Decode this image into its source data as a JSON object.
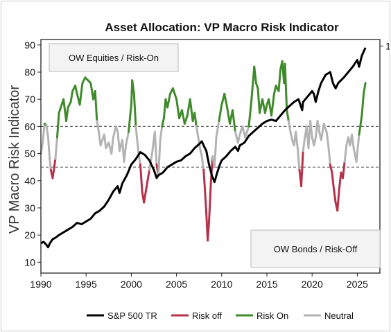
{
  "chart_data": {
    "type": "line",
    "title": "Asset Allocation: VP Macro Risk Indicator",
    "ylabel": "VP Macro Risk Indicator",
    "xlim": [
      1990,
      2027.5
    ],
    "ylim": [
      6,
      92
    ],
    "x_ticks": [
      1990,
      1995,
      2000,
      2005,
      2010,
      2015,
      2020,
      2025
    ],
    "y_ticks": [
      10,
      20,
      30,
      40,
      50,
      60,
      70,
      80,
      90
    ],
    "right_axis_ticks": [
      {
        "label": "1",
        "y": 89.6
      }
    ],
    "thresholds": [
      60,
      45
    ],
    "grid": false,
    "legend_position": "bottom",
    "annotations": [
      {
        "text": "OW Equities / Risk-On",
        "position": "top-left"
      },
      {
        "text": "OW Bonds / Risk-Off",
        "position": "bottom-right"
      }
    ],
    "colors": {
      "sp500": "#000000",
      "risk_off": "#b5324b",
      "risk_on": "#3f8a2a",
      "neutral": "#b3b3b3"
    },
    "series": [
      {
        "name": "S&P 500 TR",
        "role": "sp500",
        "x": [
          1990.0,
          1990.3,
          1990.6,
          1990.8,
          1991.0,
          1991.3,
          1991.6,
          1992.0,
          1992.5,
          1993.0,
          1993.5,
          1994.0,
          1994.5,
          1995.0,
          1995.5,
          1996.0,
          1996.5,
          1997.0,
          1997.5,
          1998.0,
          1998.5,
          1998.7,
          1999.0,
          1999.5,
          2000.0,
          2000.5,
          2001.0,
          2001.5,
          2002.0,
          2002.5,
          2002.8,
          2003.0,
          2003.5,
          2004.0,
          2004.5,
          2005.0,
          2005.5,
          2006.0,
          2006.5,
          2007.0,
          2007.5,
          2007.8,
          2008.0,
          2008.3,
          2008.6,
          2008.9,
          2009.2,
          2009.5,
          2009.8,
          2010.0,
          2010.5,
          2011.0,
          2011.5,
          2011.8,
          2012.0,
          2012.5,
          2013.0,
          2013.5,
          2014.0,
          2014.5,
          2015.0,
          2015.5,
          2016.0,
          2016.5,
          2017.0,
          2017.5,
          2018.0,
          2018.5,
          2018.9,
          2019.0,
          2019.5,
          2020.0,
          2020.2,
          2020.4,
          2020.7,
          2021.0,
          2021.5,
          2022.0,
          2022.3,
          2022.6,
          2022.9,
          2023.2,
          2023.5,
          2024.0,
          2024.5,
          2025.0,
          2025.2,
          2025.5,
          2025.9
        ],
        "y": [
          17,
          17.5,
          16.5,
          15.5,
          17,
          18.5,
          19,
          20,
          21,
          22,
          23,
          24.5,
          24,
          25,
          26,
          28,
          29,
          30.5,
          33,
          36,
          38,
          35.5,
          39,
          42,
          46,
          48,
          50.5,
          49.5,
          47.5,
          44,
          41,
          42,
          43,
          45,
          46,
          47,
          47.5,
          49,
          50,
          52,
          53.5,
          54.5,
          53,
          51,
          46,
          42,
          39.5,
          43,
          46,
          47.5,
          49,
          51,
          52.5,
          51,
          53,
          54,
          56.5,
          58,
          59.5,
          61,
          62,
          62.5,
          62,
          64,
          66,
          67.5,
          69,
          70,
          66,
          69,
          71,
          73,
          72,
          69,
          73,
          76,
          79,
          80,
          76,
          74,
          76,
          77,
          78,
          80,
          82,
          84.5,
          82,
          86,
          89
        ]
      },
      {
        "name": "Risk Indicator",
        "role": "indicator",
        "legend_names": [
          "Risk off",
          "Risk On",
          "Neutral"
        ],
        "x": [
          1990.0,
          1990.2,
          1990.4,
          1990.6,
          1990.8,
          1991.0,
          1991.1,
          1991.3,
          1991.6,
          1991.8,
          1992.0,
          1992.3,
          1992.5,
          1992.8,
          1993.0,
          1993.3,
          1993.5,
          1993.8,
          1994.0,
          1994.3,
          1994.6,
          1994.9,
          1995.2,
          1995.5,
          1995.8,
          1996.0,
          1996.2,
          1996.4,
          1996.6,
          1996.8,
          1997.0,
          1997.2,
          1997.5,
          1997.8,
          1998.0,
          1998.3,
          1998.5,
          1998.7,
          1999.0,
          1999.2,
          1999.4,
          1999.7,
          2000.0,
          2000.1,
          2000.3,
          2000.5,
          2000.8,
          2001.0,
          2001.2,
          2001.4,
          2001.6,
          2001.8,
          2002.0,
          2002.3,
          2002.6,
          2002.8,
          2003.0,
          2003.2,
          2003.4,
          2003.6,
          2003.8,
          2004.0,
          2004.3,
          2004.6,
          2005.0,
          2005.3,
          2005.6,
          2005.9,
          2006.2,
          2006.5,
          2006.8,
          2007.0,
          2007.2,
          2007.4,
          2007.6,
          2007.8,
          2008.0,
          2008.1,
          2008.3,
          2008.45,
          2008.6,
          2008.8,
          2009.0,
          2009.2,
          2009.4,
          2009.7,
          2010.0,
          2010.3,
          2010.6,
          2010.9,
          2011.2,
          2011.5,
          2011.8,
          2012.0,
          2012.3,
          2012.6,
          2013.0,
          2013.3,
          2013.6,
          2013.8,
          2014.0,
          2014.2,
          2014.5,
          2014.8,
          2015.0,
          2015.2,
          2015.5,
          2015.8,
          2016.0,
          2016.3,
          2016.5,
          2016.7,
          2016.9,
          2017.0,
          2017.2,
          2017.4,
          2017.6,
          2017.8,
          2018.0,
          2018.2,
          2018.4,
          2018.6,
          2018.8,
          2019.0,
          2019.2,
          2019.4,
          2019.6,
          2019.8,
          2020.0,
          2020.2,
          2020.4,
          2020.6,
          2020.8,
          2021.0,
          2021.3,
          2021.6,
          2021.8,
          2022.0,
          2022.2,
          2022.4,
          2022.6,
          2022.8,
          2023.0,
          2023.2,
          2023.4,
          2023.6,
          2023.8,
          2024.0,
          2024.2,
          2024.4,
          2024.6,
          2024.9,
          2025.2,
          2025.5,
          2025.7,
          2025.9
        ],
        "y": [
          50,
          54,
          61,
          60.5,
          56,
          47,
          44,
          41,
          48,
          56,
          65,
          68,
          70,
          62,
          67,
          69,
          73,
          75,
          72,
          68,
          76,
          78,
          77,
          76,
          70,
          73,
          62,
          58,
          53,
          55,
          57,
          52,
          54,
          50,
          56,
          60,
          58,
          51,
          55,
          47,
          53,
          58,
          68,
          77,
          72,
          60,
          50,
          46,
          36,
          32,
          36,
          40,
          44,
          50,
          58,
          46,
          42,
          55,
          60,
          63,
          70,
          67,
          72,
          74,
          70,
          63,
          66,
          61,
          64,
          70,
          62,
          65,
          60,
          56,
          52,
          49,
          44,
          39,
          28,
          18,
          25,
          39,
          49,
          45,
          56,
          62,
          68,
          72,
          67,
          61,
          66,
          58,
          54,
          57,
          60,
          56,
          60,
          70,
          82,
          76,
          74,
          65,
          70,
          65,
          68,
          70,
          64,
          72,
          75,
          73,
          81,
          84,
          76,
          83,
          66,
          62,
          58,
          55,
          53,
          58,
          52,
          44,
          38,
          51,
          56,
          60,
          52,
          62,
          56,
          53,
          56,
          62,
          58,
          55,
          61,
          58,
          53,
          46,
          43,
          37,
          32,
          29,
          37,
          43,
          41,
          47,
          53,
          56,
          53,
          57,
          52,
          47,
          57,
          64,
          72,
          76
        ]
      }
    ]
  },
  "legend": {
    "items": [
      {
        "label": "S&P 500 TR",
        "color": "#000000"
      },
      {
        "label": "Risk off",
        "color": "#b5324b"
      },
      {
        "label": "Risk On",
        "color": "#3f8a2a"
      },
      {
        "label": "Neutral",
        "color": "#b3b3b3"
      }
    ]
  }
}
